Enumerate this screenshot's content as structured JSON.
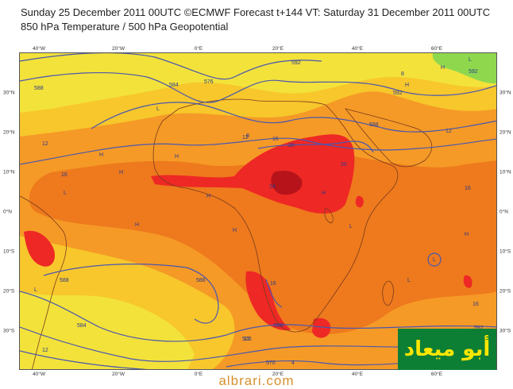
{
  "header": {
    "title_line1": "Sunday 25 December 2011 00UTC ©ECMWF Forecast t+144 VT: Saturday 31 December 2011 00UTC",
    "title_line2": "850 hPa Temperature / 500 hPa Geopotential"
  },
  "axes": {
    "longitude_labels": [
      "40°W",
      "20°W",
      "0°E",
      "20°E",
      "40°E",
      "60°E"
    ],
    "latitude_labels": [
      "30°N",
      "20°N",
      "10°N",
      "0°N",
      "10°S",
      "20°S",
      "30°S"
    ]
  },
  "contours": {
    "geopotential_labels": [
      "588",
      "584",
      "576",
      "592",
      "592",
      "592",
      "588",
      "588",
      "586",
      "584",
      "588",
      "592",
      "576",
      "570"
    ],
    "temperature_labels": [
      "8",
      "12",
      "16",
      "12",
      "16",
      "20",
      "24",
      "20",
      "16",
      "16",
      "12",
      "12",
      "16",
      "12",
      "8",
      "4"
    ]
  },
  "pressure_markers": [
    "H",
    "L"
  ],
  "watermark": {
    "arabic_text": "أبو ميعاد",
    "site": "albrari.com"
  },
  "colors": {
    "cold_green": "#8fd84e",
    "cool_yellow": "#f3e23a",
    "warm_yellow": "#f7c72c",
    "orange": "#f59a26",
    "dark_orange": "#ee7a1d",
    "red": "#ee2824",
    "dark_red": "#b6141a",
    "contour_blue": "#4a57b0",
    "coast": "#7a3a1e",
    "watermark_bg": "#0c7f35",
    "watermark_text": "#ffe600"
  }
}
